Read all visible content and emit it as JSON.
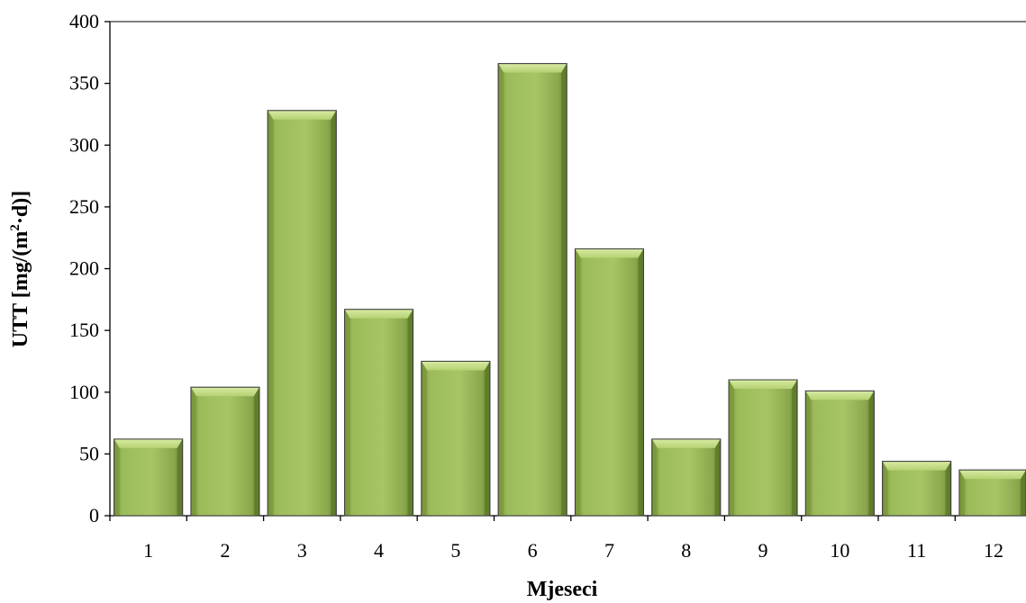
{
  "chart_data": {
    "type": "bar",
    "title": "",
    "xlabel": "Mjeseci",
    "ylabel": "UTT  [mg/(m²·d)]",
    "ylabel_parts": {
      "prefix": "UTT  [mg/(m",
      "superscript": "2",
      "suffix": "·d)]"
    },
    "categories": [
      "1",
      "2",
      "3",
      "4",
      "5",
      "6",
      "7",
      "8",
      "9",
      "10",
      "11",
      "12"
    ],
    "values": [
      62,
      104,
      328,
      167,
      125,
      366,
      216,
      62,
      110,
      101,
      44,
      37
    ],
    "ylim": [
      0,
      400
    ],
    "yticks": [
      0,
      50,
      100,
      150,
      200,
      250,
      300,
      350,
      400
    ],
    "grid": false,
    "legend": "none",
    "colors": {
      "bar_face": "#9BBB59",
      "bar_light": "#C4DC87",
      "bar_dark": "#5E7A2A",
      "bar_outline": "#3F3F3F",
      "axis": "#000000"
    }
  }
}
